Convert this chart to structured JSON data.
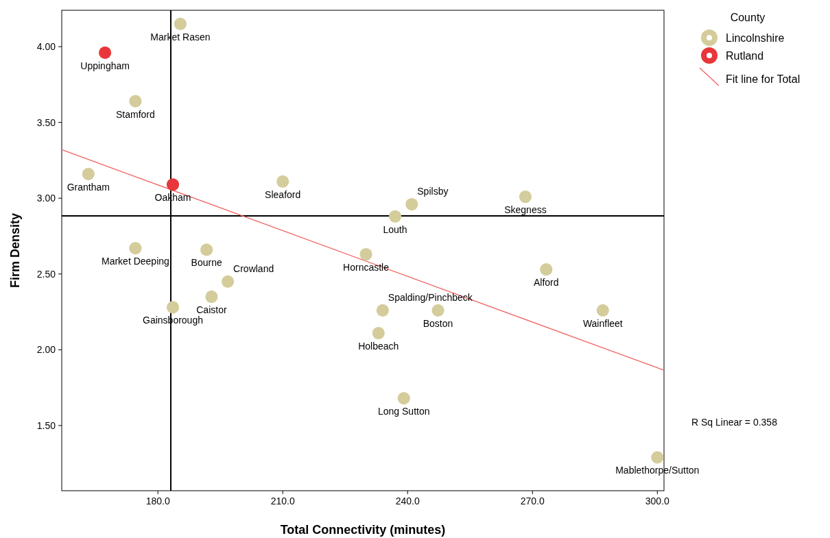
{
  "chart_data": {
    "type": "scatter",
    "xlabel": "Total Connectivity (minutes)",
    "ylabel": "Firm Density",
    "legend_title": "County",
    "legend": "top right",
    "marker": "circle",
    "grid": false,
    "xlim": [
      156.9,
      301.6
    ],
    "ylim": [
      1.07,
      4.24
    ],
    "xticks": [
      {
        "value": 180,
        "label": "180.0"
      },
      {
        "value": 210,
        "label": "210.0"
      },
      {
        "value": 240,
        "label": "240.0"
      },
      {
        "value": 270,
        "label": "270.0"
      },
      {
        "value": 300,
        "label": "300.0"
      }
    ],
    "yticks": [
      {
        "value": 1.5,
        "label": "1.50"
      },
      {
        "value": 2,
        "label": "2.00"
      },
      {
        "value": 2.5,
        "label": "2.50"
      },
      {
        "value": 3,
        "label": "3.00"
      },
      {
        "value": 3.5,
        "label": "3.50"
      },
      {
        "value": 4,
        "label": "4.00"
      }
    ],
    "series": [
      {
        "name": "Lincolnshire",
        "color": "#d4cc9a",
        "x": [
          185.4,
          174.6,
          163.3,
          210,
          241,
          268.3,
          237,
          174.6,
          191.7,
          230,
          273.3,
          196.8,
          192.9,
          183.6,
          234,
          247.3,
          286.9,
          233,
          239.1,
          300
        ],
        "values": [
          4.15,
          3.64,
          3.16,
          3.11,
          2.96,
          3.01,
          2.88,
          2.67,
          2.66,
          2.63,
          2.53,
          2.45,
          2.35,
          2.28,
          2.26,
          2.26,
          2.26,
          2.11,
          1.68,
          1.29
        ]
      },
      {
        "name": "Rutland",
        "color": "#e8363a",
        "x": [
          167.3,
          183.6
        ],
        "values": [
          3.96,
          3.09
        ]
      },
      {
        "name": "Fit line for Total",
        "type": "line",
        "color": "#f26060",
        "marker": "none",
        "x": [
          156.9,
          301.6
        ],
        "values": [
          3.32,
          1.865
        ]
      }
    ],
    "ref_lines": [
      {
        "axis": "x",
        "value": 183.1,
        "color": "#000000"
      },
      {
        "axis": "y",
        "value": 2.883,
        "color": "#000000"
      }
    ],
    "annotations": [
      {
        "text": "Market Rasen",
        "x": 185.4,
        "y": 4.15
      },
      {
        "text": "Stamford",
        "x": 174.6,
        "y": 3.64
      },
      {
        "text": "Grantham",
        "x": 163.3,
        "y": 3.16
      },
      {
        "text": "Sleaford",
        "x": 210,
        "y": 3.11
      },
      {
        "text": "Spilsby",
        "x": 241,
        "y": 2.96
      },
      {
        "text": "Skegness",
        "x": 268.3,
        "y": 3.01
      },
      {
        "text": "Louth",
        "x": 237,
        "y": 2.88
      },
      {
        "text": "Market Deeping",
        "x": 174.6,
        "y": 2.67
      },
      {
        "text": "Bourne",
        "x": 191.7,
        "y": 2.66
      },
      {
        "text": "Horncastle",
        "x": 230,
        "y": 2.63
      },
      {
        "text": "Alford",
        "x": 273.3,
        "y": 2.53
      },
      {
        "text": "Crowland",
        "x": 196.8,
        "y": 2.45
      },
      {
        "text": "Caistor",
        "x": 192.9,
        "y": 2.35
      },
      {
        "text": "Gainsborough",
        "x": 183.6,
        "y": 2.28
      },
      {
        "text": "Spalding/Pinchbeck",
        "x": 234,
        "y": 2.26
      },
      {
        "text": "Boston",
        "x": 247.3,
        "y": 2.26
      },
      {
        "text": "Wainfleet",
        "x": 286.9,
        "y": 2.26
      },
      {
        "text": "Holbeach",
        "x": 233,
        "y": 2.11
      },
      {
        "text": "Long Sutton",
        "x": 239.1,
        "y": 1.68
      },
      {
        "text": "Mablethorpe/Sutton",
        "x": 300,
        "y": 1.29
      },
      {
        "text": "Uppingham",
        "x": 167.3,
        "y": 3.96
      },
      {
        "text": "Oakham",
        "x": 183.6,
        "y": 3.09
      },
      "R Sq Linear = 0.358"
    ]
  }
}
